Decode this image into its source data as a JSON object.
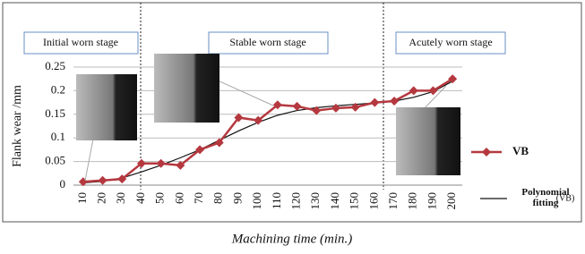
{
  "chart_data": {
    "type": "line",
    "y_label": "Flank wear /mm",
    "x_label": "Machining time (min.)",
    "categories": [
      10,
      20,
      30,
      40,
      50,
      60,
      70,
      80,
      90,
      100,
      110,
      120,
      130,
      140,
      150,
      160,
      170,
      180,
      190,
      200
    ],
    "series": [
      {
        "name": "VB",
        "color": "#b5383f",
        "marker": "diamond",
        "values": [
          0.007,
          0.01,
          0.013,
          0.046,
          0.046,
          0.042,
          0.075,
          0.09,
          0.143,
          0.137,
          0.17,
          0.167,
          0.158,
          0.163,
          0.165,
          0.175,
          0.178,
          0.2,
          0.2,
          0.225
        ]
      },
      {
        "name": "Polynomial fitting",
        "color": "#111111",
        "marker": "none",
        "values": [
          0.005,
          0.008,
          0.015,
          0.028,
          0.042,
          0.058,
          0.075,
          0.095,
          0.115,
          0.133,
          0.148,
          0.158,
          0.164,
          0.168,
          0.171,
          0.174,
          0.178,
          0.186,
          0.198,
          0.22
        ]
      }
    ],
    "legend_note": "(VB)",
    "stages": [
      "Initial worn stage",
      "Stable worn stage",
      "Acutely worn stage"
    ],
    "ylim": [
      0,
      0.25
    ],
    "yticks": [
      0,
      0.05,
      0.1,
      0.15,
      0.2,
      0.25
    ],
    "grid": true
  }
}
